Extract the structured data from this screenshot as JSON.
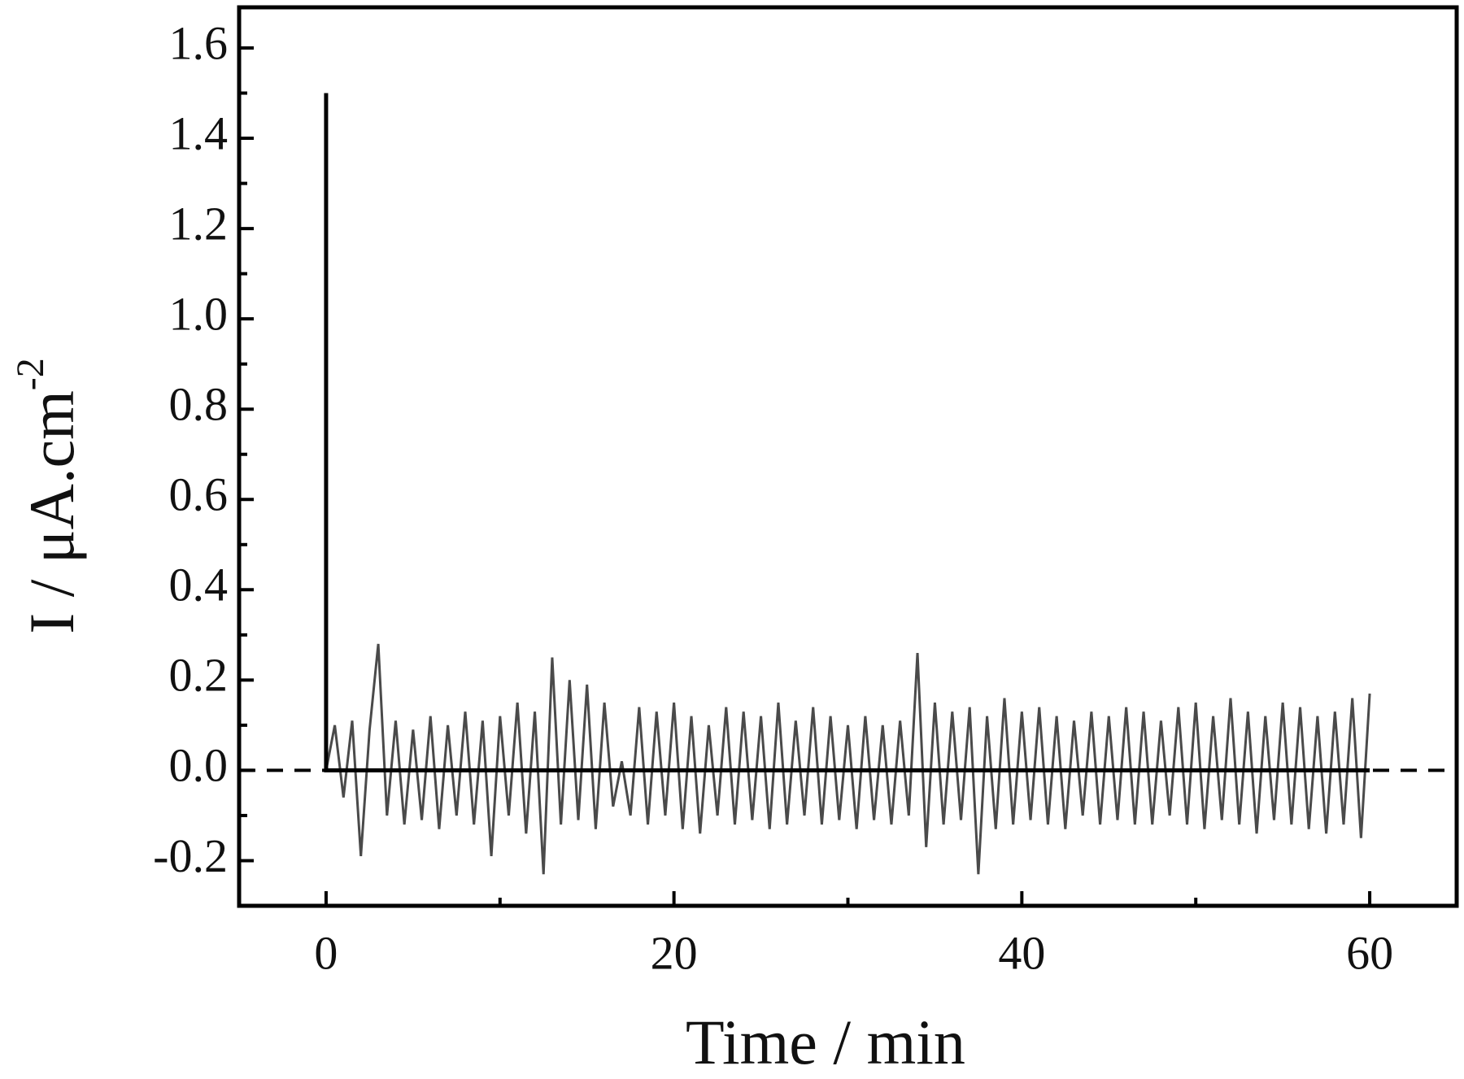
{
  "chart_data": {
    "type": "line",
    "xlabel": "Time / min",
    "ylabel": {
      "text": "I / μA.cm",
      "superscript": "-2"
    },
    "xlim": [
      -5,
      65
    ],
    "ylim": [
      -0.3,
      1.69
    ],
    "xticks": [
      0,
      20,
      40,
      60
    ],
    "xminorticks": [
      10,
      30,
      50
    ],
    "yticks": [
      -0.2,
      {
        "value": 0,
        "label": "0.0"
      },
      0.2,
      0.4,
      0.6,
      0.8,
      {
        "value": 1,
        "label": "1.0"
      },
      1.2,
      1.4,
      1.6
    ],
    "yminorticks": [
      -0.1,
      0.1,
      0.3,
      0.5,
      0.7,
      0.9,
      1.1,
      1.3,
      1.5
    ],
    "zero_line": 0,
    "grid": false,
    "series": [
      {
        "color": "#4a4a4a",
        "x": [
          0,
          0.5,
          1,
          1.5,
          2,
          2.5,
          3,
          3.5,
          4,
          4.5,
          5,
          5.5,
          6,
          6.5,
          7,
          7.5,
          8,
          8.5,
          9,
          9.5,
          10,
          10.5,
          11,
          11.5,
          12,
          12.5,
          13,
          13.5,
          14,
          14.5,
          15,
          15.5,
          16,
          16.5,
          17,
          17.5,
          18,
          18.5,
          19,
          19.5,
          20,
          20.5,
          21,
          21.5,
          22,
          22.5,
          23,
          23.5,
          24,
          24.5,
          25,
          25.5,
          26,
          26.5,
          27,
          27.5,
          28,
          28.5,
          29,
          29.5,
          30,
          30.5,
          31,
          31.5,
          32,
          32.5,
          33,
          33.5,
          34,
          34.5,
          35,
          35.5,
          36,
          36.5,
          37,
          37.5,
          38,
          38.5,
          39,
          39.5,
          40,
          40.5,
          41,
          41.5,
          42,
          42.5,
          43,
          43.5,
          44,
          44.5,
          45,
          45.5,
          46,
          46.5,
          47,
          47.5,
          48,
          48.5,
          49,
          49.5,
          50,
          50.5,
          51,
          51.5,
          52,
          52.5,
          53,
          53.5,
          54,
          54.5,
          55,
          55.5,
          56,
          56.5,
          57,
          57.5,
          58,
          58.5,
          59,
          59.5,
          60
        ],
        "values": [
          0,
          0.1,
          -0.06,
          0.11,
          -0.19,
          0.09,
          0.28,
          -0.1,
          0.11,
          -0.12,
          0.09,
          -0.11,
          0.12,
          -0.13,
          0.1,
          -0.1,
          0.13,
          -0.12,
          0.11,
          -0.19,
          0.12,
          -0.1,
          0.15,
          -0.14,
          0.13,
          -0.23,
          0.25,
          -0.12,
          0.2,
          -0.11,
          0.19,
          -0.13,
          0.15,
          -0.08,
          0.02,
          -0.1,
          0.14,
          -0.12,
          0.13,
          -0.1,
          0.15,
          -0.13,
          0.12,
          -0.14,
          0.1,
          -0.1,
          0.14,
          -0.12,
          0.13,
          -0.11,
          0.12,
          -0.13,
          0.15,
          -0.12,
          0.11,
          -0.1,
          0.14,
          -0.12,
          0.12,
          -0.11,
          0.1,
          -0.13,
          0.12,
          -0.11,
          0.1,
          -0.12,
          0.11,
          -0.1,
          0.26,
          -0.17,
          0.15,
          -0.12,
          0.13,
          -0.11,
          0.14,
          -0.23,
          0.12,
          -0.13,
          0.16,
          -0.12,
          0.13,
          -0.11,
          0.14,
          -0.12,
          0.12,
          -0.13,
          0.11,
          -0.1,
          0.13,
          -0.12,
          0.12,
          -0.11,
          0.14,
          -0.12,
          0.13,
          -0.12,
          0.11,
          -0.1,
          0.14,
          -0.12,
          0.15,
          -0.13,
          0.12,
          -0.11,
          0.16,
          -0.12,
          0.13,
          -0.14,
          0.12,
          -0.11,
          0.15,
          -0.12,
          0.14,
          -0.13,
          0.12,
          -0.14,
          0.13,
          -0.12,
          0.16,
          -0.15,
          0.17
        ]
      },
      {
        "color": "#000000",
        "x": [
          0,
          0,
          60
        ],
        "values": [
          1.5,
          0,
          0
        ]
      }
    ]
  }
}
